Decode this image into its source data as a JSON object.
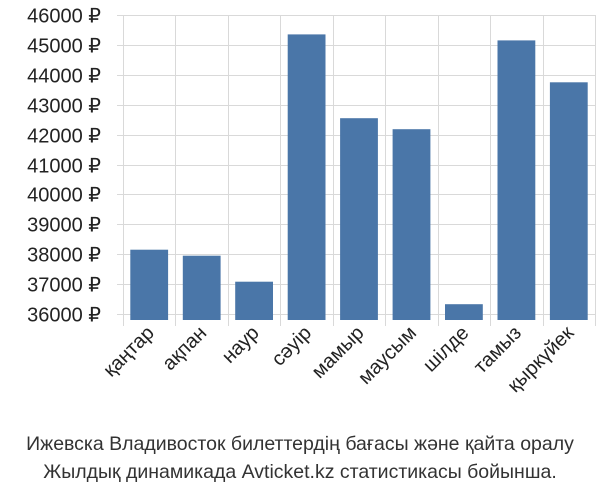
{
  "chart_data": {
    "type": "bar",
    "categories": [
      "қаңтар",
      "ақпан",
      "наур",
      "сәуір",
      "мамыр",
      "маусым",
      "шілде",
      "тамыз",
      "қыркүйек"
    ],
    "values": [
      38150,
      37950,
      37080,
      45350,
      42550,
      42180,
      36330,
      45150,
      43750
    ],
    "ylim": [
      35800,
      46000
    ],
    "yticks": [
      36000,
      37000,
      38000,
      39000,
      40000,
      41000,
      42000,
      43000,
      44000,
      45000,
      46000
    ],
    "currency_suffix": " ₽",
    "bar_color": "#4a76a8",
    "grid": true,
    "title": "",
    "xlabel": "",
    "ylabel": ""
  },
  "caption": {
    "line1": "Ижевска Владивосток билеттердің бағасы және қайта оралу",
    "line2": "Жылдық динамикада Avticket.kz статистикасы бойынша."
  }
}
